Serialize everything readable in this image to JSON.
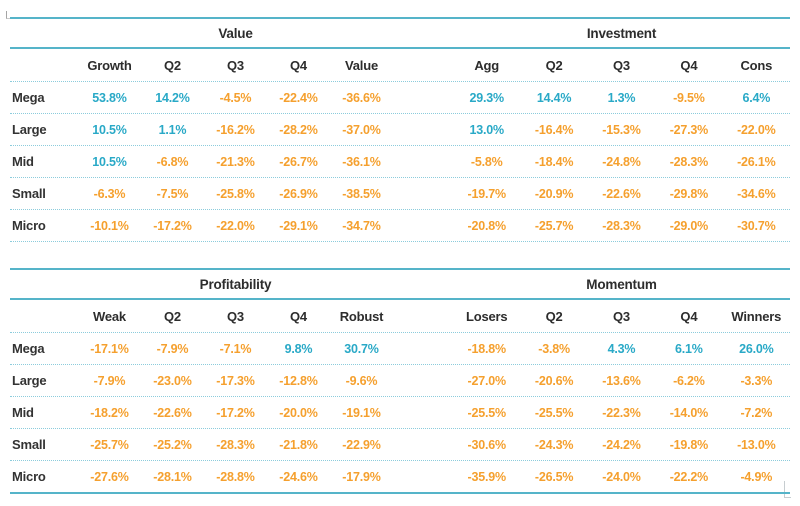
{
  "colors": {
    "positive": "#29a9c7",
    "negative": "#f5a02e",
    "rule_solid": "#55b4c9",
    "rule_dotted": "#8cccdc",
    "header_text": "#2d2d2d"
  },
  "tables": [
    {
      "sections": [
        "Value",
        "Investment"
      ],
      "columns_left": [
        "Growth",
        "Q2",
        "Q3",
        "Q4",
        "Value"
      ],
      "columns_right": [
        "Agg",
        "Q2",
        "Q3",
        "Q4",
        "Cons"
      ],
      "rows": [
        {
          "label": "Mega",
          "left": [
            "53.8%",
            "14.2%",
            "-4.5%",
            "-22.4%",
            "-36.6%"
          ],
          "right": [
            "29.3%",
            "14.4%",
            "1.3%",
            "-9.5%",
            "6.4%"
          ]
        },
        {
          "label": "Large",
          "left": [
            "10.5%",
            "1.1%",
            "-16.2%",
            "-28.2%",
            "-37.0%"
          ],
          "right": [
            "13.0%",
            "-16.4%",
            "-15.3%",
            "-27.3%",
            "-22.0%"
          ]
        },
        {
          "label": "Mid",
          "left": [
            "10.5%",
            "-6.8%",
            "-21.3%",
            "-26.7%",
            "-36.1%"
          ],
          "right": [
            "-5.8%",
            "-18.4%",
            "-24.8%",
            "-28.3%",
            "-26.1%"
          ]
        },
        {
          "label": "Small",
          "left": [
            "-6.3%",
            "-7.5%",
            "-25.8%",
            "-26.9%",
            "-38.5%"
          ],
          "right": [
            "-19.7%",
            "-20.9%",
            "-22.6%",
            "-29.8%",
            "-34.6%"
          ]
        },
        {
          "label": "Micro",
          "left": [
            "-10.1%",
            "-17.2%",
            "-22.0%",
            "-29.1%",
            "-34.7%"
          ],
          "right": [
            "-20.8%",
            "-25.7%",
            "-28.3%",
            "-29.0%",
            "-30.7%"
          ]
        }
      ]
    },
    {
      "sections": [
        "Profitability",
        "Momentum"
      ],
      "columns_left": [
        "Weak",
        "Q2",
        "Q3",
        "Q4",
        "Robust"
      ],
      "columns_right": [
        "Losers",
        "Q2",
        "Q3",
        "Q4",
        "Winners"
      ],
      "rows": [
        {
          "label": "Mega",
          "left": [
            "-17.1%",
            "-7.9%",
            "-7.1%",
            "9.8%",
            "30.7%"
          ],
          "right": [
            "-18.8%",
            "-3.8%",
            "4.3%",
            "6.1%",
            "26.0%"
          ]
        },
        {
          "label": "Large",
          "left": [
            "-7.9%",
            "-23.0%",
            "-17.3%",
            "-12.8%",
            "-9.6%"
          ],
          "right": [
            "-27.0%",
            "-20.6%",
            "-13.6%",
            "-6.2%",
            "-3.3%"
          ]
        },
        {
          "label": "Mid",
          "left": [
            "-18.2%",
            "-22.6%",
            "-17.2%",
            "-20.0%",
            "-19.1%"
          ],
          "right": [
            "-25.5%",
            "-25.5%",
            "-22.3%",
            "-14.0%",
            "-7.2%"
          ]
        },
        {
          "label": "Small",
          "left": [
            "-25.7%",
            "-25.2%",
            "-28.3%",
            "-21.8%",
            "-22.9%"
          ],
          "right": [
            "-30.6%",
            "-24.3%",
            "-24.2%",
            "-19.8%",
            "-13.0%"
          ]
        },
        {
          "label": "Micro",
          "left": [
            "-27.6%",
            "-28.1%",
            "-28.8%",
            "-24.6%",
            "-17.9%"
          ],
          "right": [
            "-35.9%",
            "-26.5%",
            "-24.0%",
            "-22.2%",
            "-4.9%"
          ]
        }
      ]
    }
  ]
}
